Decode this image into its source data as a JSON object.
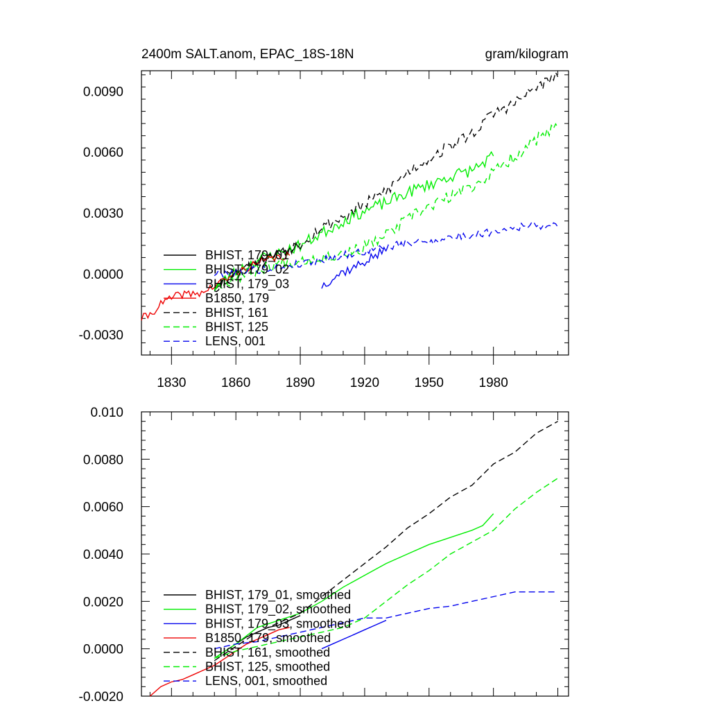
{
  "chart_data": [
    {
      "type": "line",
      "title": "2400m SALT.anom, EPAC_18S-18N",
      "units_label": "gram/kilogram",
      "xlabel": "",
      "ylabel": "",
      "xlim": [
        1816,
        2015
      ],
      "ylim": [
        -0.004,
        0.01
      ],
      "x_ticks": [
        1830,
        1860,
        1890,
        1920,
        1950,
        1980
      ],
      "x_tick_labels": [
        "1830",
        "1860",
        "1890",
        "1920",
        "1950",
        "1980"
      ],
      "y_ticks": [
        -0.003,
        0.0,
        0.003,
        0.006,
        0.009
      ],
      "y_tick_labels": [
        "-0.0030",
        "0.0000",
        "0.0030",
        "0.0060",
        "0.0090"
      ],
      "legend_position": "lower-left",
      "series": [
        {
          "name": "BHIST, 179_01",
          "color": "#000000",
          "dash": "solid",
          "x": [
            1850,
            1855,
            1860,
            1865,
            1870,
            1875,
            1880,
            1885,
            1890
          ],
          "y": [
            -0.0007,
            -0.0003,
            0.0001,
            0.0004,
            0.0006,
            0.0009,
            0.001,
            0.0012,
            0.0015
          ],
          "noise": 0.0002,
          "seed": 11
        },
        {
          "name": "BHIST, 179_02",
          "color": "#00ee00",
          "dash": "solid",
          "x": [
            1850,
            1860,
            1870,
            1880,
            1890,
            1900,
            1910,
            1920,
            1930,
            1940,
            1950,
            1960,
            1970,
            1980
          ],
          "y": [
            -0.0007,
            0.0001,
            0.0007,
            0.001,
            0.0014,
            0.002,
            0.0026,
            0.0031,
            0.0035,
            0.004,
            0.0044,
            0.0048,
            0.0051,
            0.0058
          ],
          "noise": 0.0003,
          "seed": 23
        },
        {
          "name": "BHIST, 179_03",
          "color": "#0000ee",
          "dash": "solid",
          "x": [
            1900,
            1905,
            1910,
            1915,
            1920,
            1925,
            1930
          ],
          "y": [
            -0.0006,
            -0.0002,
            0.0001,
            0.0003,
            0.0006,
            0.0009,
            0.0011
          ],
          "noise": 0.00025,
          "seed": 37
        },
        {
          "name": "B1850, 179",
          "color": "#ee0000",
          "dash": "solid",
          "x": [
            1816,
            1820,
            1825,
            1830,
            1835,
            1840,
            1845,
            1850,
            1855,
            1860,
            1865,
            1870,
            1875,
            1880,
            1885
          ],
          "y": [
            -0.0022,
            -0.002,
            -0.0015,
            -0.0012,
            -0.001,
            -0.001,
            -0.0009,
            -0.0006,
            -0.0003,
            0.0,
            0.0003,
            0.0005,
            0.0007,
            0.0008,
            0.0009
          ],
          "noise": 0.0002,
          "seed": 41
        },
        {
          "name": "BHIST, 161",
          "color": "#000000",
          "dash": "dash",
          "x": [
            1850,
            1860,
            1870,
            1880,
            1890,
            1900,
            1910,
            1920,
            1930,
            1940,
            1950,
            1960,
            1970,
            1980,
            1990,
            2000,
            2010
          ],
          "y": [
            -0.0007,
            0.0,
            0.0006,
            0.001,
            0.0015,
            0.0023,
            0.0028,
            0.0034,
            0.0041,
            0.005,
            0.0057,
            0.0063,
            0.0069,
            0.0079,
            0.0084,
            0.0092,
            0.0097
          ],
          "noise": 0.0003,
          "seed": 53
        },
        {
          "name": "BHIST, 125",
          "color": "#00ee00",
          "dash": "dash",
          "x": [
            1850,
            1860,
            1870,
            1880,
            1890,
            1900,
            1910,
            1920,
            1930,
            1940,
            1950,
            1960,
            1970,
            1980,
            1990,
            2000,
            2010
          ],
          "y": [
            -0.0006,
            -0.0002,
            0.0002,
            0.0005,
            0.0007,
            0.0008,
            0.001,
            0.0013,
            0.0019,
            0.0027,
            0.0033,
            0.0038,
            0.0043,
            0.005,
            0.0058,
            0.0066,
            0.0072
          ],
          "noise": 0.0003,
          "seed": 67
        },
        {
          "name": "LENS, 001",
          "color": "#0000ee",
          "dash": "dash",
          "x": [
            1850,
            1860,
            1870,
            1880,
            1890,
            1900,
            1910,
            1920,
            1930,
            1940,
            1950,
            1960,
            1970,
            1980,
            1990,
            2000,
            2010
          ],
          "y": [
            0.0,
            0.0001,
            0.0002,
            0.0003,
            0.0005,
            0.0007,
            0.0009,
            0.0011,
            0.0013,
            0.0015,
            0.0016,
            0.0018,
            0.0019,
            0.0021,
            0.0023,
            0.0024,
            0.0023
          ],
          "noise": 0.0002,
          "seed": 79
        }
      ]
    },
    {
      "type": "line",
      "title": "",
      "xlabel": "",
      "ylabel": "",
      "xlim": [
        1816,
        2015
      ],
      "ylim": [
        -0.002,
        0.01
      ],
      "x_ticks": [
        1830,
        1860,
        1890,
        1920,
        1950,
        1980,
        2010
      ],
      "y_ticks": [
        -0.002,
        0.0,
        0.002,
        0.004,
        0.006,
        0.008,
        0.01
      ],
      "y_tick_labels": [
        "-0.0020",
        "0.0000",
        "0.0020",
        "0.0040",
        "0.0060",
        "0.0080",
        "0.010"
      ],
      "legend_position": "lower-left",
      "series": [
        {
          "name": "BHIST, 179_01, smoothed",
          "color": "#000000",
          "dash": "solid",
          "x": [
            1850,
            1855,
            1860,
            1865,
            1870,
            1875,
            1880,
            1885,
            1890
          ],
          "y": [
            -0.0004,
            -0.0001,
            0.0002,
            0.0005,
            0.0007,
            0.0009,
            0.001,
            0.0012,
            0.0014
          ]
        },
        {
          "name": "BHIST, 179_02, smoothed",
          "color": "#00ee00",
          "dash": "solid",
          "x": [
            1850,
            1860,
            1870,
            1880,
            1890,
            1900,
            1910,
            1920,
            1930,
            1940,
            1950,
            1960,
            1970,
            1975,
            1980
          ],
          "y": [
            -0.0004,
            0.0002,
            0.0009,
            0.0012,
            0.0015,
            0.002,
            0.0026,
            0.0031,
            0.0036,
            0.004,
            0.0044,
            0.0047,
            0.005,
            0.0052,
            0.0057
          ]
        },
        {
          "name": "BHIST, 179_03, smoothed",
          "color": "#0000ee",
          "dash": "solid",
          "x": [
            1900,
            1905,
            1910,
            1915,
            1920,
            1925,
            1930
          ],
          "y": [
            0.0,
            0.0002,
            0.0004,
            0.0006,
            0.0008,
            0.001,
            0.0012
          ]
        },
        {
          "name": "B1850, 179, smoothed",
          "color": "#ee0000",
          "dash": "solid",
          "x": [
            1820,
            1825,
            1830,
            1835,
            1840,
            1845,
            1850,
            1855,
            1860,
            1865,
            1870,
            1875,
            1880,
            1885
          ],
          "y": [
            -0.002,
            -0.0016,
            -0.0014,
            -0.0013,
            -0.0011,
            -0.0009,
            -0.0007,
            -0.0004,
            -0.0001,
            0.0002,
            0.0004,
            0.0006,
            0.0008,
            0.0009
          ]
        },
        {
          "name": "BHIST, 161, smoothed",
          "color": "#000000",
          "dash": "dash",
          "x": [
            1850,
            1860,
            1870,
            1880,
            1890,
            1900,
            1910,
            1920,
            1930,
            1940,
            1950,
            1960,
            1970,
            1980,
            1990,
            2000,
            2010
          ],
          "y": [
            -0.0005,
            0.0001,
            0.0007,
            0.0011,
            0.0015,
            0.0022,
            0.0029,
            0.0036,
            0.0043,
            0.0051,
            0.0057,
            0.0064,
            0.0069,
            0.0078,
            0.0083,
            0.0091,
            0.0096
          ]
        },
        {
          "name": "BHIST, 125, smoothed",
          "color": "#00ee00",
          "dash": "dash",
          "x": [
            1850,
            1860,
            1870,
            1880,
            1890,
            1900,
            1910,
            1920,
            1930,
            1940,
            1950,
            1960,
            1970,
            1980,
            1990,
            2000,
            2010
          ],
          "y": [
            -0.0004,
            -0.0001,
            0.0001,
            0.0003,
            0.0005,
            0.0007,
            0.0009,
            0.0013,
            0.002,
            0.0027,
            0.0033,
            0.004,
            0.0045,
            0.005,
            0.0059,
            0.0066,
            0.0072
          ]
        },
        {
          "name": "LENS, 001, smoothed",
          "color": "#0000ee",
          "dash": "dash",
          "x": [
            1850,
            1860,
            1870,
            1880,
            1890,
            1900,
            1910,
            1920,
            1930,
            1940,
            1950,
            1960,
            1970,
            1980,
            1990,
            2000,
            2010
          ],
          "y": [
            0.0,
            0.0002,
            0.0003,
            0.0005,
            0.0007,
            0.0009,
            0.0011,
            0.0013,
            0.0013,
            0.0015,
            0.0017,
            0.0018,
            0.002,
            0.0022,
            0.0024,
            0.0024,
            0.0024
          ]
        }
      ]
    }
  ]
}
